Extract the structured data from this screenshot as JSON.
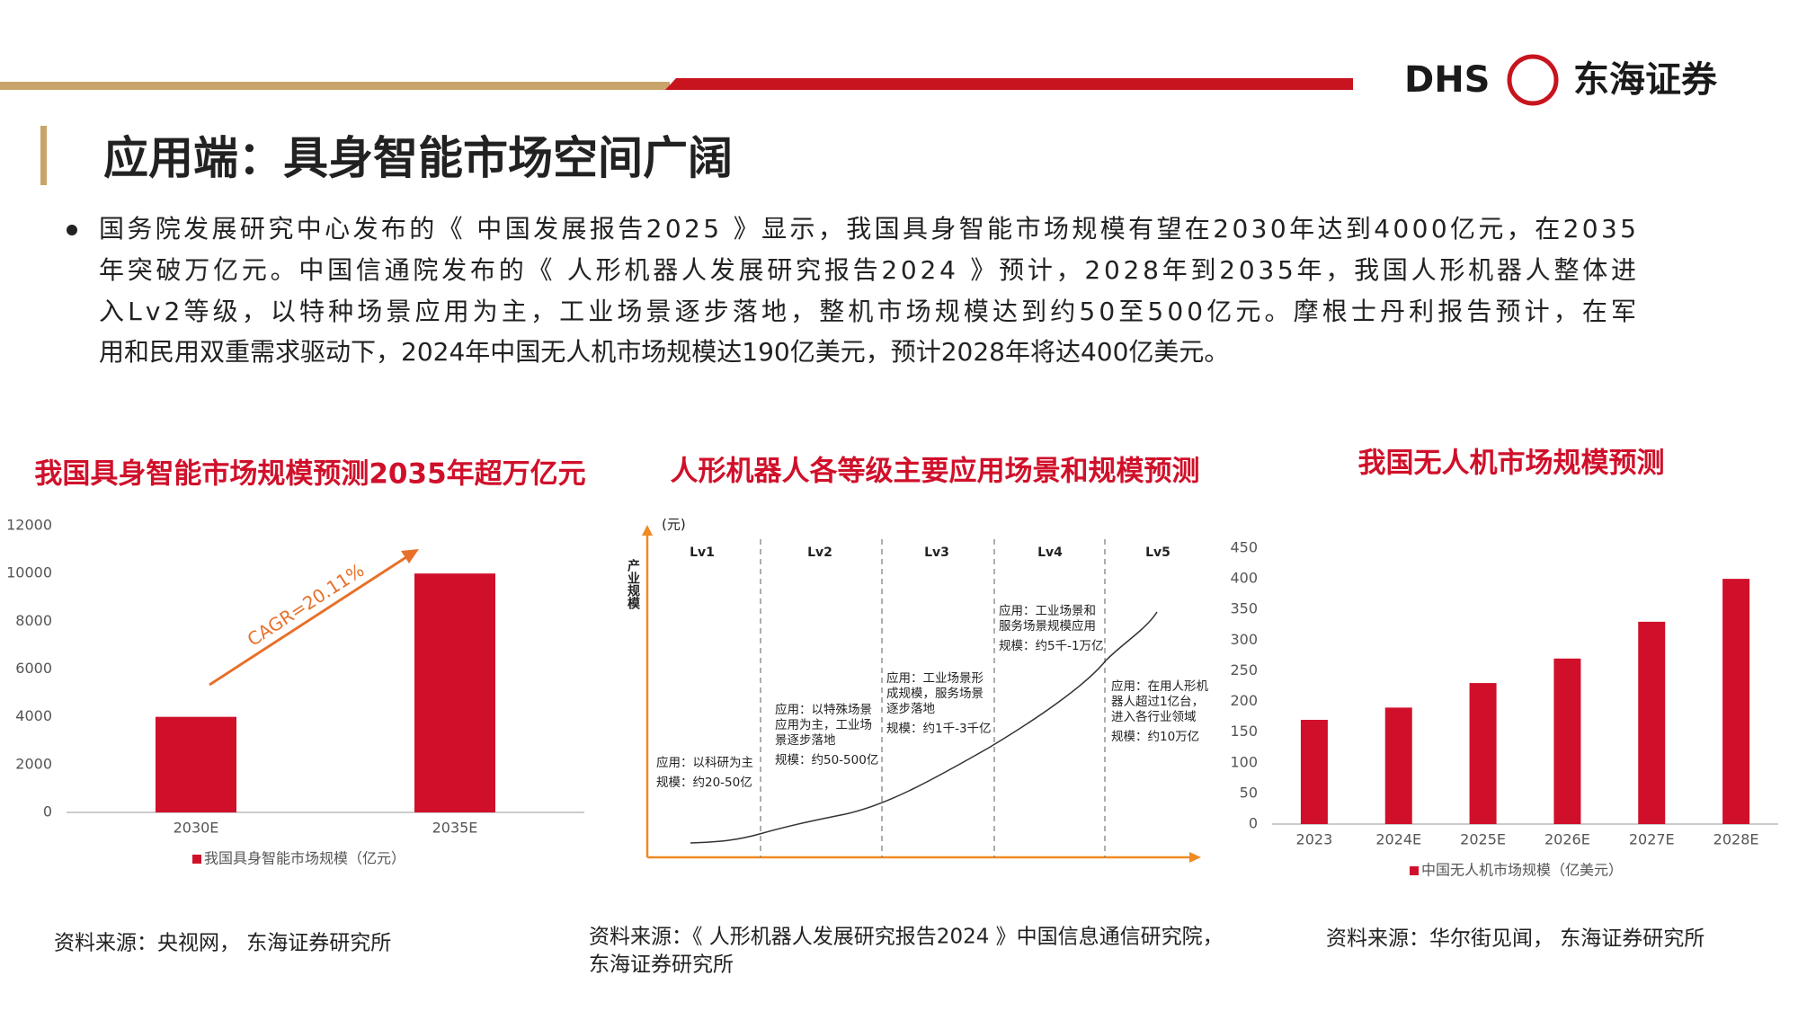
{
  "header": {
    "logo_en": "DHS",
    "logo_cn": "东海证券",
    "title": "应用端：具身智能市场空间广阔"
  },
  "bullet": {
    "lines": [
      "国务院发展研究中心发布的《 中国发展报告2025 》显示，我国具身智能市场规模有望在2030年达到4000亿元，在2035",
      "年突破万亿元。中国信通院发布的《 人形机器人发展研究报告2024 》预计，2028年到2035年，我国人形机器人整体进",
      "入Lv2等级，以特种场景应用为主，工业场景逐步落地，整机市场规模达到约50至500亿元。摩根士丹利报告预计，在军",
      "用和民用双重需求驱动下，2024年中国无人机市场规模达190亿美元，预计2028年将达400亿美元。"
    ]
  },
  "chart_data": [
    {
      "type": "bar",
      "title": "我国具身智能市场规模预测2035年超万亿元",
      "categories": [
        "2030E",
        "2035E"
      ],
      "series": [
        {
          "name": "我国具身智能市场规模（亿元）",
          "color": "#d0102a",
          "values": [
            4000,
            10000
          ]
        }
      ],
      "ylim": [
        0,
        12000
      ],
      "yticks": [
        0,
        2000,
        4000,
        6000,
        8000,
        10000,
        12000
      ],
      "annotation": "CAGR=20.11%"
    },
    {
      "type": "bar",
      "title": "我国无人机市场规模预测",
      "categories": [
        "2023",
        "2024E",
        "2025E",
        "2026E",
        "2027E",
        "2028E"
      ],
      "series": [
        {
          "name": "中国无人机市场规模（亿美元）",
          "color": "#d0102a",
          "values": [
            170,
            190,
            230,
            270,
            330,
            400
          ]
        }
      ],
      "ylim": [
        0,
        450
      ],
      "yticks": [
        0,
        50,
        100,
        150,
        200,
        250,
        300,
        350,
        400,
        450
      ]
    }
  ],
  "diagram": {
    "title": "人形机器人各等级主要应用场景和规模预测",
    "y_unit": "(元)",
    "y_label": "产业规模",
    "levels": [
      {
        "name": "Lv1",
        "lines": [
          "应用：以科研为主",
          "规模：约20-50亿"
        ]
      },
      {
        "name": "Lv2",
        "lines": [
          "应用：以特殊场景",
          "应用为主，工业场",
          "景逐步落地",
          "规模：约50-500亿"
        ]
      },
      {
        "name": "Lv3",
        "lines": [
          "应用：工业场景形",
          "成规模，服务场景",
          "逐步落地",
          "规模：约1千-3千亿"
        ]
      },
      {
        "name": "Lv4",
        "lines": [
          "应用：工业场景和",
          "服务场景规模应用",
          "规模：约5千-1万亿"
        ]
      },
      {
        "name": "Lv5",
        "lines": [
          "应用：在用人形机",
          "器人超过1亿台，",
          "进入各行业领域",
          "规模：约10万亿"
        ]
      }
    ]
  },
  "sources": {
    "left": "资料来源：央视网， 东海证券研究所",
    "middle": [
      "资料来源：《 人形机器人发展研究报告2024 》中国信息通信研究院，",
      "东海证券研究所"
    ],
    "right": "资料来源：华尔街见闻， 东海证券研究所"
  }
}
